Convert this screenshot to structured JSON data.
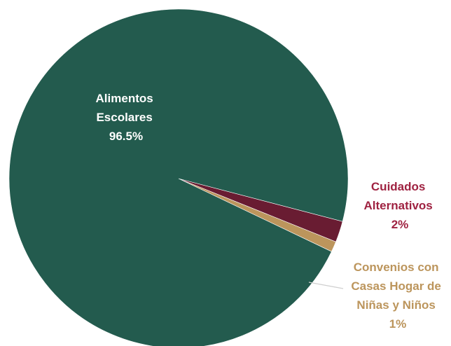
{
  "chart_data": {
    "type": "pie",
    "title": "",
    "slices": [
      {
        "label": [
          "Alimentos",
          "Escolares"
        ],
        "value": 96.5,
        "value_label": "96.5%",
        "color": "#235B4E",
        "label_color": "#FFFFFF"
      },
      {
        "label": [
          "Cuidados",
          "Alternativos"
        ],
        "value": 2,
        "value_label": "2%",
        "color": "#691C32",
        "label_color": "#9F2241"
      },
      {
        "label": [
          "Convenios con",
          "Casas Hogar de",
          "Niñas y Niños"
        ],
        "value": 1,
        "value_label": "1%",
        "color": "#BC955C",
        "label_color": "#BC955C"
      }
    ]
  }
}
